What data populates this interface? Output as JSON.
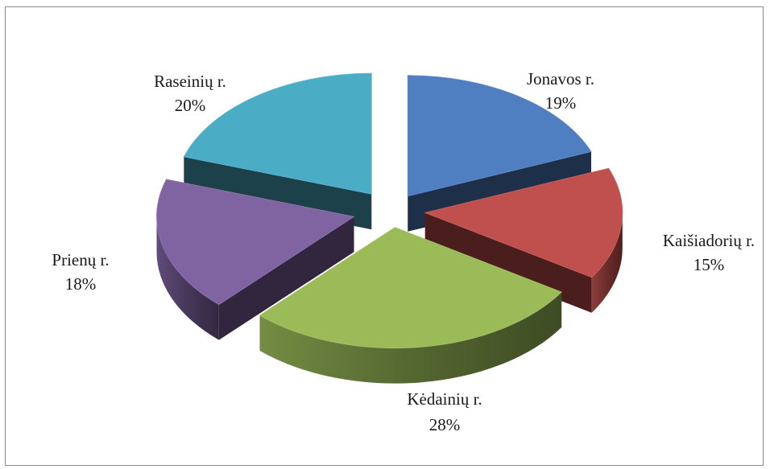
{
  "chart_data": {
    "type": "pie",
    "title": "",
    "legend": "none",
    "slices": [
      {
        "name": "Jonavos r.",
        "label": "19%",
        "value": 19,
        "color": "#4f7fc1"
      },
      {
        "name": "Kaišiadorių r.",
        "label": "15%",
        "value": 15,
        "color": "#c0504d"
      },
      {
        "name": "Kėdainių r.",
        "label": "28%",
        "value": 28,
        "color": "#9bbb59"
      },
      {
        "name": "Prienų r.",
        "label": "18%",
        "value": 18,
        "color": "#8064a2"
      },
      {
        "name": "Raseinių r.",
        "label": "20%",
        "value": 20,
        "color": "#4bacc6"
      }
    ]
  }
}
